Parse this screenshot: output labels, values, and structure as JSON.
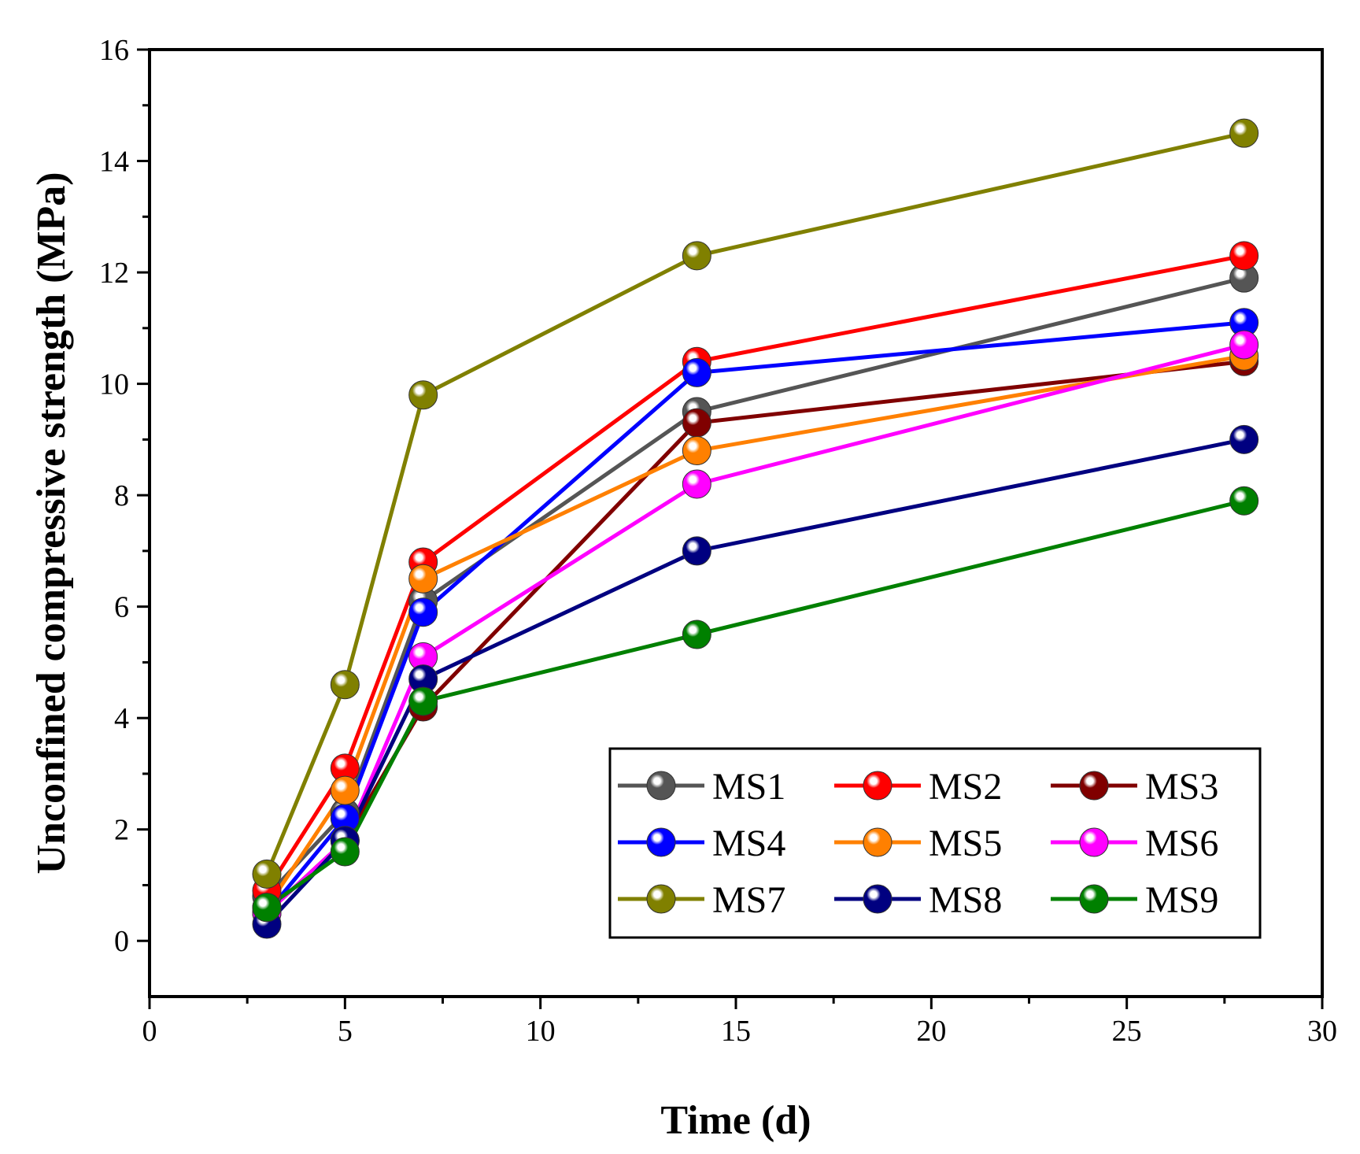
{
  "chart_data": {
    "type": "line",
    "xlabel": "Time (d)",
    "ylabel": "Unconfined compressive strength (MPa)",
    "xlim": [
      0,
      30
    ],
    "ylim": [
      -1,
      16
    ],
    "xticks": [
      0,
      5,
      10,
      15,
      20,
      25,
      30
    ],
    "yticks": [
      0,
      2,
      4,
      6,
      8,
      10,
      12,
      14,
      16
    ],
    "grid": false,
    "legend_position": "bottom-right",
    "x": [
      3,
      5,
      7,
      14,
      28
    ],
    "series": [
      {
        "name": "MS1",
        "color": "#555555",
        "values": [
          0.8,
          2.3,
          6.1,
          9.5,
          11.9
        ]
      },
      {
        "name": "MS2",
        "color": "#ff0000",
        "values": [
          0.9,
          3.1,
          6.8,
          10.4,
          12.3
        ]
      },
      {
        "name": "MS3",
        "color": "#800000",
        "values": [
          0.5,
          1.8,
          4.2,
          9.3,
          10.4
        ]
      },
      {
        "name": "MS4",
        "color": "#0000ff",
        "values": [
          0.5,
          2.2,
          5.9,
          10.2,
          11.1
        ]
      },
      {
        "name": "MS5",
        "color": "#ff8000",
        "values": [
          0.6,
          2.7,
          6.5,
          8.8,
          10.5
        ]
      },
      {
        "name": "MS6",
        "color": "#ff00ff",
        "values": [
          0.5,
          1.8,
          5.1,
          8.2,
          10.7
        ]
      },
      {
        "name": "MS7",
        "color": "#808000",
        "values": [
          1.2,
          4.6,
          9.8,
          12.3,
          14.5
        ]
      },
      {
        "name": "MS8",
        "color": "#000080",
        "values": [
          0.3,
          1.8,
          4.7,
          7.0,
          9.0
        ]
      },
      {
        "name": "MS9",
        "color": "#008000",
        "values": [
          0.6,
          1.6,
          4.3,
          5.5,
          7.9
        ]
      }
    ]
  }
}
